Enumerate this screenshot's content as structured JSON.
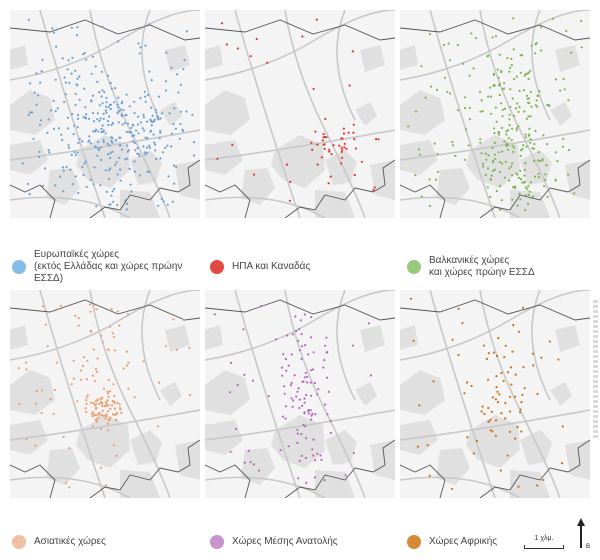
{
  "panels": [
    {
      "label": "Ευρωπαϊκές χώρες\n(εκτός Ελλάδας και χώρες πρώην ΕΣΣΔ)",
      "color": "#6a9fd4",
      "swatch": "#86bde8"
    },
    {
      "label": "ΗΠΑ και Καναδάς",
      "color": "#d83a2e",
      "swatch": "#e04a40"
    },
    {
      "label": "Βαλκανικές χώρες\nκαι χώρες πρώην ΕΣΣΔ",
      "color": "#79b552",
      "swatch": "#98c97d"
    },
    {
      "label": "Ασιατικές χώρες",
      "color": "#ec9c6c",
      "swatch": "#f1bfa4"
    },
    {
      "label": "Χώρες Μέσης Ανατολής",
      "color": "#b864c2",
      "swatch": "#c993cb"
    },
    {
      "label": "Χώρες Αφρικής",
      "color": "#c87012",
      "swatch": "#d58a3a"
    }
  ],
  "scale": {
    "label": "1 χλμ."
  },
  "north": {
    "label": "Β"
  },
  "colors": {
    "background": "#ffffff",
    "panel_background": "#f4f4f4",
    "land_patch": "#e0e0e0",
    "roads": "#c8c8c8",
    "boundary": "#555555"
  }
}
